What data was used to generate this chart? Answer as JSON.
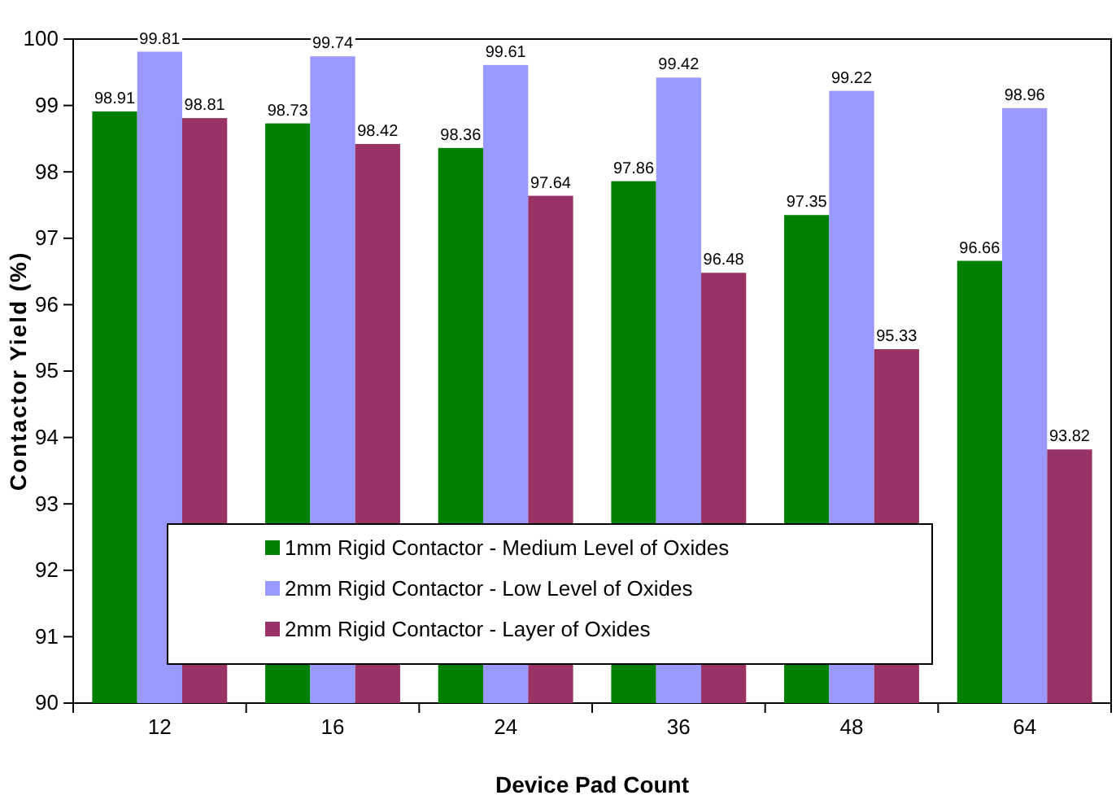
{
  "chart_data": {
    "type": "bar",
    "xlabel": "Device Pad Count",
    "ylabel": "Contactor Yield (%)",
    "categories": [
      "12",
      "16",
      "24",
      "36",
      "48",
      "64"
    ],
    "series": [
      {
        "name": "1mm Rigid Contactor - Medium Level of Oxides",
        "color": "#008000",
        "values": [
          98.91,
          98.73,
          98.36,
          97.86,
          97.35,
          96.66
        ]
      },
      {
        "name": "2mm Rigid Contactor - Low Level of Oxides",
        "color": "#9999ff",
        "values": [
          99.81,
          99.74,
          99.61,
          99.42,
          99.22,
          98.96
        ]
      },
      {
        "name": "2mm Rigid Contactor - Layer of Oxides",
        "color": "#993366",
        "values": [
          98.81,
          98.42,
          97.64,
          96.48,
          95.33,
          93.82
        ]
      }
    ],
    "ylim": [
      90,
      100
    ],
    "yticks": [
      90,
      91,
      92,
      93,
      94,
      95,
      96,
      97,
      98,
      99,
      100
    ],
    "data_labels": true,
    "legend": "bottom left",
    "grid": false
  }
}
